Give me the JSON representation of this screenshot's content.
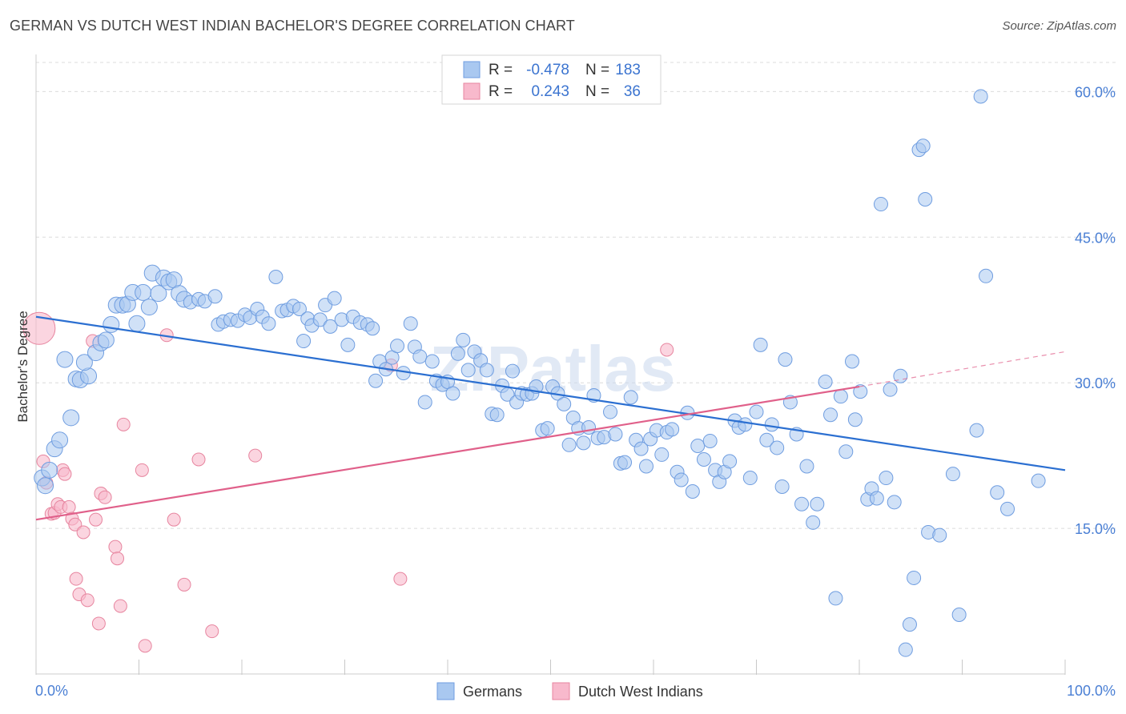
{
  "header": {
    "title": "GERMAN VS DUTCH WEST INDIAN BACHELOR'S DEGREE CORRELATION CHART",
    "source": "Source: ZipAtlas.com"
  },
  "watermark": "ZIPatlas",
  "legend_top": {
    "rows": [
      {
        "r_label": "R =",
        "r_value": "-0.478",
        "n_label": "N =",
        "n_value": "183",
        "color": "#a9c8f0",
        "stroke": "#6f9de0"
      },
      {
        "r_label": "R =",
        "r_value": "0.243",
        "n_label": "N =",
        "n_value": "36",
        "color": "#f8b9cc",
        "stroke": "#e7859f"
      }
    ]
  },
  "legend_bottom": {
    "items": [
      {
        "label": "Germans",
        "color": "#a9c8f0",
        "stroke": "#6f9de0"
      },
      {
        "label": "Dutch West Indians",
        "color": "#f8b9cc",
        "stroke": "#e7859f"
      }
    ]
  },
  "chart_data": {
    "type": "scatter",
    "title": "GERMAN VS DUTCH WEST INDIAN BACHELOR'S DEGREE CORRELATION CHART",
    "xlabel": "",
    "ylabel": "Bachelor's Degree",
    "xlim": [
      0,
      100
    ],
    "ylim": [
      0,
      63
    ],
    "x_tick_labels": [
      "0.0%",
      "100.0%"
    ],
    "y_ticks": [
      15,
      30,
      45,
      60
    ],
    "y_tick_labels": [
      "15.0%",
      "30.0%",
      "45.0%",
      "60.0%"
    ],
    "grid": true,
    "legend_position": "top-center",
    "colors": {
      "germans": "#6f9de0",
      "germans_fill": "#a9c8f0",
      "dutch": "#e7859f",
      "dutch_fill": "#f8b9cc",
      "germans_line": "#2b6fd1",
      "dutch_line": "#e0608a"
    },
    "series": [
      {
        "name": "Germans",
        "points": [
          [
            0.6,
            20.2
          ],
          [
            0.9,
            19.4
          ],
          [
            1.3,
            21.0
          ],
          [
            1.8,
            23.2
          ],
          [
            2.3,
            24.1
          ],
          [
            2.8,
            32.4
          ],
          [
            3.4,
            26.4
          ],
          [
            3.9,
            30.4
          ],
          [
            4.3,
            30.3
          ],
          [
            5.1,
            30.7
          ],
          [
            4.7,
            32.1
          ],
          [
            5.8,
            33.1
          ],
          [
            6.3,
            34.1
          ],
          [
            6.8,
            34.4
          ],
          [
            7.3,
            36.0
          ],
          [
            7.8,
            38.0
          ],
          [
            8.4,
            38.0
          ],
          [
            8.9,
            38.1
          ],
          [
            9.4,
            39.3
          ],
          [
            9.8,
            36.1
          ],
          [
            10.4,
            39.3
          ],
          [
            11.0,
            37.8
          ],
          [
            11.3,
            41.3
          ],
          [
            11.9,
            39.2
          ],
          [
            12.4,
            40.8
          ],
          [
            12.9,
            40.4
          ],
          [
            13.4,
            40.6
          ],
          [
            13.9,
            39.2
          ],
          [
            14.4,
            38.6
          ],
          [
            15.0,
            38.3
          ],
          [
            15.8,
            38.6
          ],
          [
            16.4,
            38.4
          ],
          [
            17.4,
            38.9
          ],
          [
            17.7,
            36.0
          ],
          [
            18.2,
            36.3
          ],
          [
            18.9,
            36.5
          ],
          [
            19.6,
            36.4
          ],
          [
            20.3,
            37.0
          ],
          [
            20.8,
            36.7
          ],
          [
            21.5,
            37.6
          ],
          [
            22.0,
            36.8
          ],
          [
            22.6,
            36.1
          ],
          [
            23.3,
            40.9
          ],
          [
            23.9,
            37.4
          ],
          [
            24.4,
            37.5
          ],
          [
            25.0,
            37.9
          ],
          [
            25.6,
            37.6
          ],
          [
            26.0,
            34.3
          ],
          [
            26.4,
            36.6
          ],
          [
            26.8,
            35.9
          ],
          [
            27.6,
            36.5
          ],
          [
            28.1,
            38.0
          ],
          [
            28.6,
            35.8
          ],
          [
            29.0,
            38.7
          ],
          [
            29.7,
            36.5
          ],
          [
            30.3,
            33.9
          ],
          [
            30.8,
            36.8
          ],
          [
            31.5,
            36.2
          ],
          [
            32.2,
            36.0
          ],
          [
            32.7,
            35.6
          ],
          [
            33.0,
            30.2
          ],
          [
            33.4,
            32.2
          ],
          [
            34.0,
            31.4
          ],
          [
            34.6,
            32.6
          ],
          [
            35.1,
            33.8
          ],
          [
            35.7,
            31.0
          ],
          [
            36.4,
            36.1
          ],
          [
            36.8,
            33.7
          ],
          [
            37.3,
            32.7
          ],
          [
            37.8,
            28.0
          ],
          [
            38.5,
            32.2
          ],
          [
            38.9,
            30.2
          ],
          [
            39.5,
            29.8
          ],
          [
            40.0,
            30.1
          ],
          [
            40.5,
            28.9
          ],
          [
            41.0,
            33.0
          ],
          [
            41.5,
            34.4
          ],
          [
            42.0,
            31.3
          ],
          [
            42.6,
            33.2
          ],
          [
            43.2,
            32.3
          ],
          [
            43.8,
            31.3
          ],
          [
            44.3,
            26.8
          ],
          [
            44.8,
            26.7
          ],
          [
            45.3,
            29.7
          ],
          [
            45.8,
            28.8
          ],
          [
            46.3,
            31.2
          ],
          [
            46.7,
            28.0
          ],
          [
            47.2,
            28.9
          ],
          [
            47.7,
            28.8
          ],
          [
            48.2,
            28.9
          ],
          [
            48.6,
            29.6
          ],
          [
            49.2,
            25.1
          ],
          [
            49.7,
            25.3
          ],
          [
            50.2,
            29.6
          ],
          [
            50.7,
            28.9
          ],
          [
            51.3,
            27.8
          ],
          [
            51.8,
            23.6
          ],
          [
            52.2,
            26.4
          ],
          [
            52.7,
            25.3
          ],
          [
            53.2,
            23.8
          ],
          [
            53.7,
            25.4
          ],
          [
            54.2,
            28.7
          ],
          [
            54.6,
            24.3
          ],
          [
            55.2,
            24.4
          ],
          [
            55.8,
            27.0
          ],
          [
            56.3,
            24.7
          ],
          [
            56.8,
            21.7
          ],
          [
            57.2,
            21.8
          ],
          [
            57.8,
            28.5
          ],
          [
            58.3,
            24.1
          ],
          [
            58.8,
            23.2
          ],
          [
            59.3,
            21.4
          ],
          [
            59.7,
            24.2
          ],
          [
            60.3,
            25.1
          ],
          [
            60.8,
            22.6
          ],
          [
            61.3,
            24.9
          ],
          [
            61.8,
            25.2
          ],
          [
            62.3,
            20.8
          ],
          [
            62.7,
            20.0
          ],
          [
            63.3,
            26.9
          ],
          [
            63.8,
            18.8
          ],
          [
            64.3,
            23.5
          ],
          [
            64.9,
            22.1
          ],
          [
            65.5,
            24.0
          ],
          [
            66.0,
            21.0
          ],
          [
            66.4,
            19.8
          ],
          [
            66.9,
            20.8
          ],
          [
            67.4,
            21.9
          ],
          [
            67.9,
            26.1
          ],
          [
            68.3,
            25.4
          ],
          [
            68.9,
            25.7
          ],
          [
            69.4,
            20.2
          ],
          [
            70.0,
            27.0
          ],
          [
            70.4,
            33.9
          ],
          [
            71.0,
            24.1
          ],
          [
            71.5,
            25.7
          ],
          [
            72.0,
            23.3
          ],
          [
            72.5,
            19.3
          ],
          [
            72.8,
            32.4
          ],
          [
            73.3,
            28.0
          ],
          [
            73.9,
            24.7
          ],
          [
            74.4,
            17.5
          ],
          [
            74.9,
            21.4
          ],
          [
            75.5,
            15.6
          ],
          [
            75.9,
            17.5
          ],
          [
            76.7,
            30.1
          ],
          [
            77.2,
            26.7
          ],
          [
            77.7,
            7.8
          ],
          [
            78.2,
            28.6
          ],
          [
            78.7,
            22.9
          ],
          [
            79.3,
            32.2
          ],
          [
            79.6,
            26.2
          ],
          [
            80.1,
            29.1
          ],
          [
            80.8,
            18.0
          ],
          [
            81.2,
            19.1
          ],
          [
            81.7,
            18.1
          ],
          [
            82.1,
            48.4
          ],
          [
            82.6,
            20.2
          ],
          [
            83.0,
            29.3
          ],
          [
            83.4,
            17.7
          ],
          [
            84.0,
            30.7
          ],
          [
            84.5,
            2.5
          ],
          [
            84.9,
            5.1
          ],
          [
            85.3,
            9.9
          ],
          [
            85.8,
            54.0
          ],
          [
            86.2,
            54.4
          ],
          [
            86.4,
            48.9
          ],
          [
            86.7,
            14.6
          ],
          [
            87.8,
            14.3
          ],
          [
            89.1,
            20.6
          ],
          [
            89.7,
            6.1
          ],
          [
            91.4,
            25.1
          ],
          [
            91.8,
            59.5
          ],
          [
            92.3,
            41.0
          ],
          [
            93.4,
            18.7
          ],
          [
            94.4,
            17.0
          ],
          [
            97.4,
            19.9
          ]
        ]
      },
      {
        "name": "Dutch West Indians",
        "points": [
          [
            0.3,
            35.6
          ],
          [
            0.7,
            21.9
          ],
          [
            1.0,
            19.7
          ],
          [
            1.5,
            16.5
          ],
          [
            1.8,
            16.6
          ],
          [
            2.1,
            17.5
          ],
          [
            2.4,
            17.2
          ],
          [
            2.6,
            21.0
          ],
          [
            2.8,
            20.6
          ],
          [
            3.2,
            17.2
          ],
          [
            3.5,
            16.0
          ],
          [
            3.8,
            15.4
          ],
          [
            3.9,
            9.8
          ],
          [
            4.2,
            8.2
          ],
          [
            4.6,
            14.6
          ],
          [
            5.0,
            7.6
          ],
          [
            5.5,
            34.3
          ],
          [
            5.8,
            15.9
          ],
          [
            6.1,
            5.2
          ],
          [
            6.3,
            18.6
          ],
          [
            6.7,
            18.2
          ],
          [
            7.7,
            13.1
          ],
          [
            7.9,
            11.9
          ],
          [
            8.2,
            7.0
          ],
          [
            8.5,
            25.7
          ],
          [
            10.3,
            21.0
          ],
          [
            10.6,
            2.9
          ],
          [
            12.7,
            34.9
          ],
          [
            13.4,
            15.9
          ],
          [
            14.4,
            9.2
          ],
          [
            15.8,
            22.1
          ],
          [
            17.1,
            4.4
          ],
          [
            21.3,
            22.5
          ],
          [
            34.5,
            31.8
          ],
          [
            35.4,
            9.8
          ],
          [
            61.3,
            33.4
          ]
        ]
      }
    ],
    "trend_lines": [
      {
        "series": "Germans",
        "x": [
          0,
          100
        ],
        "y": [
          36.8,
          21.0
        ],
        "style": "solid"
      },
      {
        "series": "Dutch West Indians",
        "x": [
          0,
          80
        ],
        "y": [
          15.9,
          29.6
        ],
        "style": "solid"
      },
      {
        "series": "Dutch West Indians",
        "x": [
          80,
          100
        ],
        "y": [
          29.6,
          33.2
        ],
        "style": "dashed"
      }
    ]
  }
}
